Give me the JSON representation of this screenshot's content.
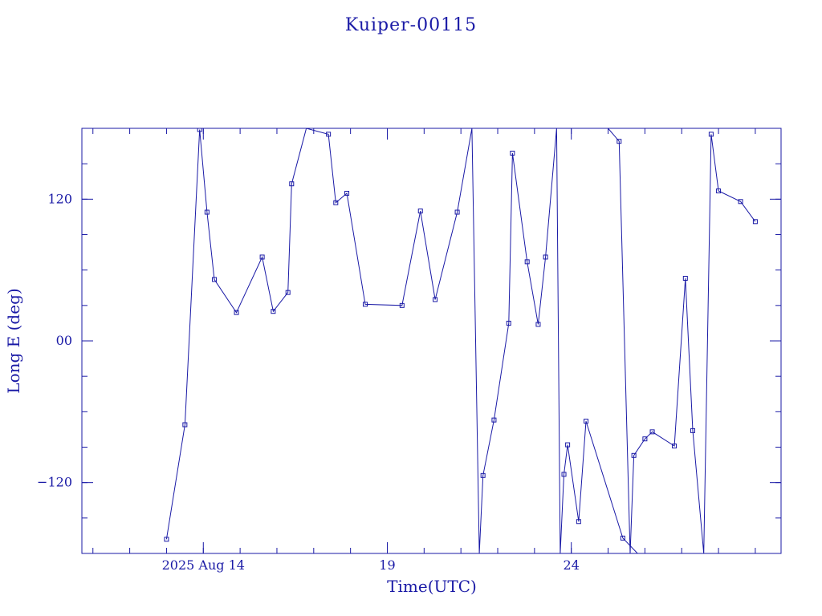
{
  "chart_data": {
    "type": "line",
    "title": "Kuiper-00115",
    "xlabel": "Time(UTC)",
    "ylabel": "Long E (deg)",
    "x_unit": "day of 2025 Aug (UTC)",
    "xlim": [
      10.7,
      29.7
    ],
    "ylim": [
      -180,
      180
    ],
    "x_ticks": [
      {
        "value": 14,
        "label": "2025 Aug 14"
      },
      {
        "value": 19,
        "label": "19"
      },
      {
        "value": 24,
        "label": "24"
      }
    ],
    "y_ticks": [
      {
        "value": 120,
        "label": "120"
      },
      {
        "value": 0,
        "label": "00"
      },
      {
        "value": -120,
        "label": "−120"
      }
    ],
    "grid": false,
    "legend": "none",
    "color": "#1a1aa6",
    "series": [
      {
        "values": [
          [
            13.0,
            -168
          ],
          [
            13.5,
            -71
          ],
          [
            13.9,
            179
          ],
          [
            14.1,
            109
          ],
          [
            14.3,
            52
          ],
          [
            14.9,
            24
          ],
          [
            15.6,
            71
          ],
          [
            15.9,
            25
          ],
          [
            16.3,
            41
          ],
          [
            16.4,
            133
          ],
          [
            16.8,
            180
          ],
          [
            17.4,
            175
          ],
          [
            17.6,
            117
          ],
          [
            17.9,
            125
          ],
          [
            18.4,
            31
          ],
          [
            19.4,
            30
          ],
          [
            19.9,
            110
          ],
          [
            20.3,
            35
          ],
          [
            20.9,
            109
          ],
          [
            21.3,
            180
          ],
          [
            21.5,
            -180
          ],
          [
            21.6,
            -114
          ],
          [
            21.9,
            -67
          ],
          [
            22.3,
            15
          ],
          [
            22.4,
            159
          ],
          [
            22.8,
            67
          ],
          [
            23.1,
            14
          ],
          [
            23.3,
            71
          ],
          [
            23.6,
            180
          ],
          [
            23.7,
            -180
          ],
          [
            23.8,
            -113
          ],
          [
            23.9,
            -88
          ],
          [
            24.2,
            -153
          ],
          [
            24.4,
            -68
          ],
          [
            25.4,
            -167
          ],
          [
            25.8,
            -180
          ]
        ]
      },
      {
        "values": [
          [
            25.0,
            180
          ],
          [
            25.3,
            169
          ],
          [
            25.6,
            -180
          ],
          [
            25.7,
            -97
          ],
          [
            26.0,
            -83
          ],
          [
            26.2,
            -77
          ],
          [
            26.8,
            -89
          ],
          [
            27.1,
            53
          ],
          [
            27.3,
            -76
          ],
          [
            27.6,
            -180
          ],
          [
            27.8,
            175
          ],
          [
            28.0,
            127
          ],
          [
            28.6,
            118
          ],
          [
            29.0,
            101
          ]
        ]
      }
    ]
  }
}
